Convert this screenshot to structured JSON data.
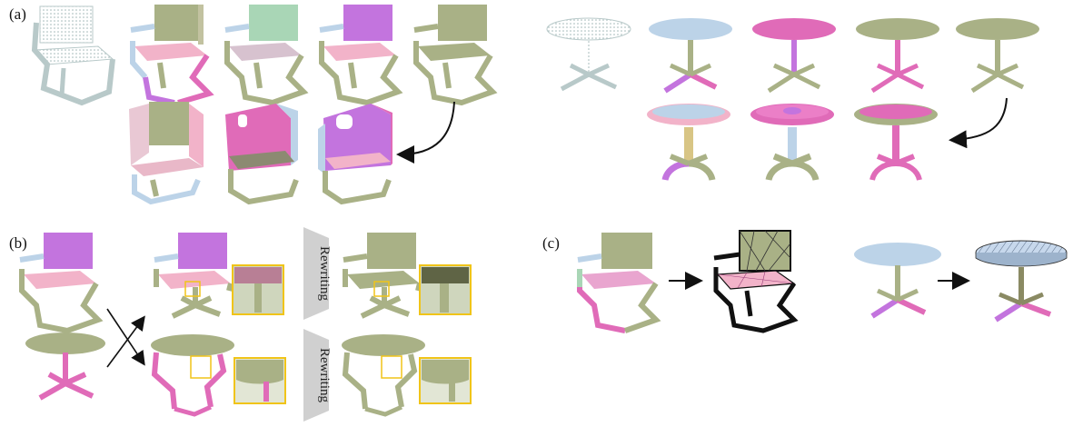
{
  "panels": {
    "a": {
      "label": "(a)"
    },
    "b": {
      "label": "(b)"
    },
    "c": {
      "label": "(c)"
    }
  },
  "rewriting": {
    "label": "Rewriting"
  },
  "colors": {
    "olive": "#a9b186",
    "olive_dark": "#8f9a6a",
    "pink": "#f2b3c9",
    "magenta": "#e06bb8",
    "purple": "#c374de",
    "light_blue": "#bcd3e8",
    "green_mint": "#a9d6b6",
    "zoom_box": "#f0c419",
    "gray_shape": "#c9c9c9"
  }
}
